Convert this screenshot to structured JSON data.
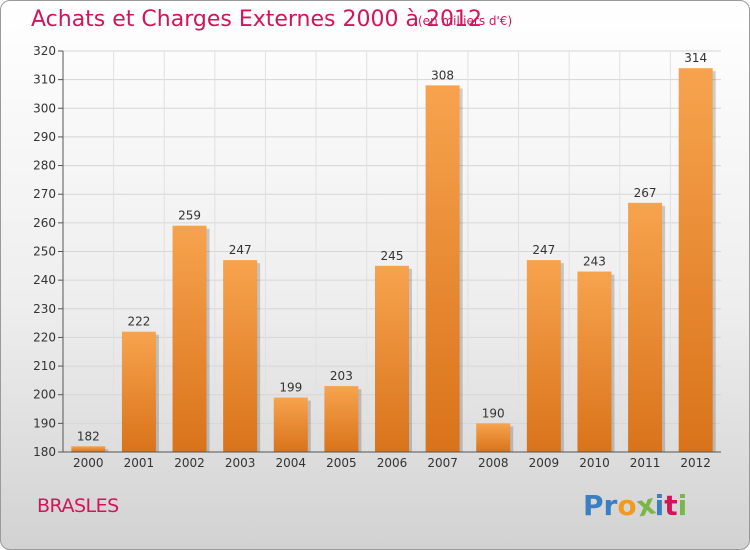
{
  "header": {
    "title": "Achats et Charges Externes 2000 à 2012",
    "subtitle": "(en milliers d'€)"
  },
  "footer": {
    "commune": "BRASLES",
    "logo": [
      "P",
      "r",
      "o",
      "x",
      "i",
      "t",
      "i"
    ]
  },
  "colors": {
    "title": "#d4145a",
    "bar_top": "#f7a34e",
    "bar_bottom": "#d9731a",
    "logo": [
      "#3a7fc1",
      "#3a7fc1",
      "#f29a1f",
      "#7ab648",
      "#3a7fc1",
      "#d4145a",
      "#7ab648"
    ]
  },
  "chart_data": {
    "type": "bar",
    "title": "Achats et Charges Externes 2000 à 2012",
    "categories": [
      "2000",
      "2001",
      "2002",
      "2003",
      "2004",
      "2005",
      "2006",
      "2007",
      "2008",
      "2009",
      "2010",
      "2011",
      "2012"
    ],
    "values": [
      182,
      222,
      259,
      247,
      199,
      203,
      245,
      308,
      190,
      247,
      243,
      267,
      314
    ],
    "ylim": [
      180,
      320
    ],
    "yticks": [
      180,
      190,
      200,
      210,
      220,
      230,
      240,
      250,
      260,
      270,
      280,
      290,
      300,
      310,
      320
    ],
    "grid": true,
    "data_labels": true
  }
}
